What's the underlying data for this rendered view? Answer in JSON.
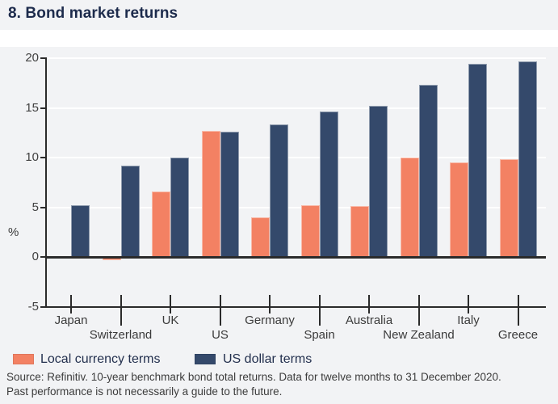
{
  "header": {
    "title": "8. Bond market returns"
  },
  "chart_data": {
    "type": "bar",
    "categories": [
      "Japan",
      "Switzerland",
      "UK",
      "US",
      "Germany",
      "Spain",
      "Australia",
      "New Zealand",
      "Italy",
      "Greece"
    ],
    "series": [
      {
        "name": "Local currency terms",
        "color": "#F38163",
        "values": [
          -0.1,
          -0.3,
          6.6,
          12.7,
          4.0,
          5.2,
          5.1,
          10.0,
          9.5,
          9.8
        ]
      },
      {
        "name": "US dollar terms",
        "color": "#34496B",
        "values": [
          5.2,
          9.2,
          10.0,
          12.6,
          13.3,
          14.6,
          15.2,
          17.3,
          19.4,
          19.7
        ]
      }
    ],
    "ylabel": "%",
    "xlabel": "",
    "ylim": [
      -5,
      20
    ],
    "yticks": [
      -5,
      0,
      5,
      10,
      15,
      20
    ],
    "grid": "horizontal white gridlines at 5,10,15,20",
    "legend_position": "bottom-left",
    "zero_line": true
  },
  "colors": {
    "background": "#f2f3f5",
    "band": "#ffffff",
    "axis": "#2b2b2b",
    "title_text": "#1d2b4c",
    "tick_text": "#414141"
  },
  "footer": {
    "line1": "Source: Refinitiv. 10-year benchmark bond total returns. Data for twelve months to 31 December 2020.",
    "line2": "Past performance is not necessarily a guide to the future."
  }
}
